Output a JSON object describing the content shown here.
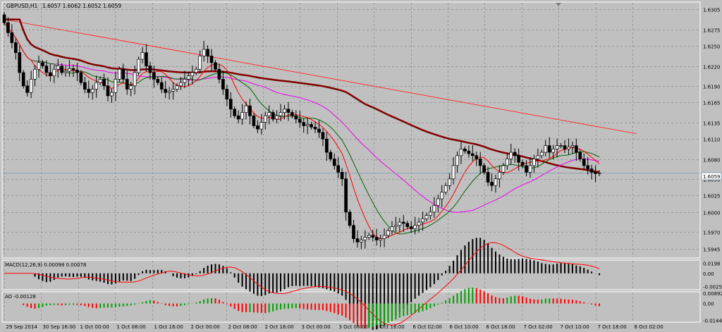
{
  "chart_data": {
    "type": "candlestick",
    "symbol_label": "GBPUSD,H1",
    "ohlc_header": "1.6057 1.6062 1.6052 1.6059",
    "current_price": "1.6059",
    "price_axis_ticks": [
      "1.6305",
      "1.6275",
      "1.6250",
      "1.6220",
      "1.6190",
      "1.6165",
      "1.6135",
      "1.6110",
      "1.6080",
      "1.6050",
      "1.6025",
      "1.6000",
      "1.5970",
      "1.5945"
    ],
    "time_axis_ticks": [
      "29 Sep 2014",
      "30 Sep 16:00",
      "1 Oct 00:00",
      "1 Oct 08:00",
      "1 Oct 16:00",
      "2 Oct 00:00",
      "2 Oct 08:00",
      "2 Oct 16:00",
      "3 Oct 00:00",
      "3 Oct 08:00",
      "3 Oct 16:00",
      "6 Oct 02:00",
      "6 Oct 10:00",
      "6 Oct 18:00",
      "7 Oct 02:00",
      "7 Oct 10:00",
      "7 Oct 18:00",
      "8 Oct 02:00"
    ],
    "ylim": [
      1.5932,
      1.6315
    ],
    "candles_close": [
      1.6285,
      1.627,
      1.6255,
      1.624,
      1.621,
      1.619,
      1.618,
      1.62,
      1.6215,
      1.6225,
      1.622,
      1.621,
      1.6205,
      1.6215,
      1.622,
      1.621,
      1.6212,
      1.6216,
      1.6214,
      1.621,
      1.6195,
      1.6185,
      1.618,
      1.6185,
      1.6195,
      1.62,
      1.619,
      1.6175,
      1.618,
      1.62,
      1.6215,
      1.62,
      1.6185,
      1.619,
      1.621,
      1.623,
      1.624,
      1.622,
      1.621,
      1.62,
      1.6195,
      1.6185,
      1.618,
      1.6182,
      1.6185,
      1.619,
      1.6195,
      1.62,
      1.6205,
      1.621,
      1.6215,
      1.6235,
      1.6245,
      1.6235,
      1.6225,
      1.6215,
      1.62,
      1.6185,
      1.617,
      1.6155,
      1.6145,
      1.614,
      1.615,
      1.616,
      1.6145,
      1.613,
      1.6125,
      1.6135,
      1.6145,
      1.615,
      1.614,
      1.6145,
      1.615,
      1.6155,
      1.615,
      1.6145,
      1.614,
      1.6135,
      1.613,
      1.6132,
      1.6128,
      1.6125,
      1.612,
      1.611,
      1.609,
      1.608,
      1.607,
      1.606,
      1.605,
      1.6,
      1.598,
      1.596,
      1.5955,
      1.5958,
      1.5962,
      1.5965,
      1.5962,
      1.5958,
      1.596,
      1.5965,
      1.5972,
      1.5978,
      1.598,
      1.5985,
      1.5983,
      1.5978,
      1.5975,
      1.598,
      1.5985,
      1.599,
      1.5995,
      1.6,
      1.601,
      1.602,
      1.603,
      1.604,
      1.605,
      1.607,
      1.6085,
      1.6095,
      1.6092,
      1.6088,
      1.6085,
      1.608,
      1.607,
      1.606,
      1.6045,
      1.604,
      1.605,
      1.606,
      1.607,
      1.608,
      1.609,
      1.6085,
      1.6075,
      1.607,
      1.606,
      1.607,
      1.608,
      1.6085,
      1.609,
      1.61,
      1.609,
      1.6095,
      1.61,
      1.61,
      1.6095,
      1.6098,
      1.61,
      1.609,
      1.608,
      1.607,
      1.6065,
      1.606,
      1.6058,
      1.6059
    ],
    "series": [
      {
        "name": "MA slow (maroon)",
        "color": "#800000"
      },
      {
        "name": "Trend line",
        "color": "#ff2020"
      },
      {
        "name": "MA (violet)",
        "color": "#ee00ee"
      },
      {
        "name": "MA (green)",
        "color": "#006400"
      },
      {
        "name": "MA (red)",
        "color": "#ff0000"
      }
    ],
    "macd": {
      "label": "MACD(12,26,9) 0.00098 0.00078",
      "ticks": [
        "0.0198",
        "0.00",
        "-0.0025"
      ],
      "ylim": [
        -0.003,
        0.0024
      ]
    },
    "ao": {
      "label": "AO -0.00128",
      "ticks": [
        "0.00892",
        "0.00",
        "-0.01449"
      ],
      "ylim": [
        -0.0155,
        0.0095
      ],
      "up_color": "#00a000",
      "down_color": "#ff0000"
    },
    "colors": {
      "background": "#c0c0c0",
      "grid": "#9a9a9a",
      "bull_body": "#ffffff",
      "bear_body": "#000000",
      "wick": "#000000",
      "current_price_line": "#8aa0b4"
    }
  }
}
